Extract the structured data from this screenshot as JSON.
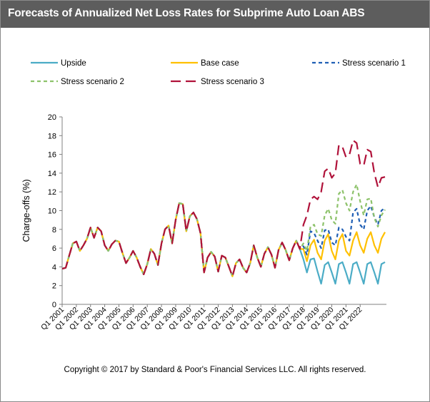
{
  "header": {
    "title": "Forecasts  of Annualized Net Loss  Rates for Subprime Auto Loan ABS"
  },
  "footer": {
    "copyright": "Copyright © 2017 by Standard & Poor's Financial Services LLC. All rights reserved."
  },
  "colors": {
    "upside": "#4bacc6",
    "base": "#ffc000",
    "stress1": "#1f5fb5",
    "stress2": "#8dc26a",
    "stress3": "#b0123a",
    "title_bg": "#5d5d5d"
  },
  "chart_data": {
    "type": "line",
    "title": "Forecasts  of Annualized Net Loss  Rates for Subprime Auto Loan ABS",
    "xlabel": "",
    "ylabel": "Charge-offs (%)",
    "ylim": [
      0,
      20
    ],
    "yticks": [
      0,
      2,
      4,
      6,
      8,
      10,
      12,
      14,
      16,
      18,
      20
    ],
    "xtick_labels": [
      "Q1 2001",
      "Q1 2002",
      "Q1 2003",
      "Q1 2004",
      "Q1 2005",
      "Q1 2006",
      "Q1 2007",
      "Q1 2008",
      "Q1 2009",
      "Q1 2010",
      "Q1 2011",
      "Q1 2012",
      "Q1 2013",
      "Q1 2014",
      "Q1 2015",
      "Q1 2016",
      "Q1 2017",
      "Q1 2018",
      "Q1 2019",
      "Q1 2020",
      "Q1 2021",
      "Q1 2022"
    ],
    "x_start_label": "Q1 2001",
    "x_frequency": "quarterly",
    "grid": false,
    "legend_position": "top",
    "history": [
      3.8,
      3.9,
      5.2,
      6.5,
      6.7,
      5.7,
      6.3,
      7.0,
      8.2,
      7.1,
      8.2,
      7.8,
      6.3,
      5.7,
      6.4,
      6.8,
      6.7,
      5.5,
      4.4,
      5.0,
      5.7,
      5.0,
      4.0,
      3.2,
      4.3,
      5.9,
      5.4,
      4.2,
      6.5,
      8.0,
      8.4,
      6.5,
      9.0,
      10.8,
      10.7,
      7.8,
      9.4,
      9.8,
      9.1,
      7.6,
      3.4,
      5.0,
      5.6,
      5.1,
      3.5,
      5.2,
      5.0,
      4.0,
      3.0,
      4.4,
      4.8,
      3.9,
      3.4,
      4.4,
      6.3,
      5.0,
      4.0,
      5.4,
      6.1,
      5.3,
      3.9,
      5.8,
      6.6,
      5.8,
      4.7,
      6.0,
      6.8,
      5.9
    ],
    "series": [
      {
        "name": "Upside",
        "style": "solid",
        "values": [
          4.8,
          3.4,
          4.8,
          4.9,
          3.5,
          2.2,
          4.2,
          4.5,
          3.4,
          2.2,
          4.3,
          4.5,
          3.4,
          2.2,
          4.3,
          4.5,
          3.4,
          2.2,
          4.3,
          4.5,
          3.4,
          2.2,
          4.3,
          4.5
        ]
      },
      {
        "name": "Base case",
        "style": "solid",
        "values": [
          5.9,
          4.6,
          6.3,
          6.9,
          5.5,
          4.8,
          6.8,
          7.5,
          5.7,
          4.8,
          6.8,
          7.5,
          5.7,
          5.2,
          6.8,
          7.7,
          6.3,
          5.5,
          7.0,
          7.7,
          6.3,
          5.5,
          7.0,
          7.7
        ]
      },
      {
        "name": "Stress scenario 1",
        "style": "short-dash",
        "values": [
          6.2,
          5.3,
          7.8,
          7.6,
          6.8,
          6.0,
          7.9,
          8.0,
          6.6,
          6.3,
          8.2,
          8.0,
          7.2,
          6.8,
          9.8,
          10.2,
          8.5,
          8.0,
          10.0,
          10.5,
          9.3,
          8.5,
          10.0,
          10.3
        ]
      },
      {
        "name": "Stress scenario 2",
        "style": "short-dash",
        "values": [
          6.5,
          5.7,
          8.3,
          8.5,
          7.5,
          7.3,
          9.5,
          10.2,
          9.0,
          8.6,
          11.8,
          12.2,
          10.8,
          10.0,
          12.0,
          12.8,
          11.0,
          9.5,
          11.2,
          11.3,
          9.2,
          8.3,
          9.5,
          10.1
        ]
      },
      {
        "name": "Stress scenario 3",
        "style": "long-dash",
        "values": [
          8.5,
          9.5,
          11.2,
          11.5,
          11.2,
          12.0,
          14.2,
          14.5,
          13.5,
          14.0,
          17.0,
          16.8,
          15.7,
          16.0,
          17.5,
          17.2,
          15.0,
          14.8,
          16.5,
          16.3,
          14.0,
          12.5,
          13.5,
          13.6
        ]
      }
    ]
  }
}
